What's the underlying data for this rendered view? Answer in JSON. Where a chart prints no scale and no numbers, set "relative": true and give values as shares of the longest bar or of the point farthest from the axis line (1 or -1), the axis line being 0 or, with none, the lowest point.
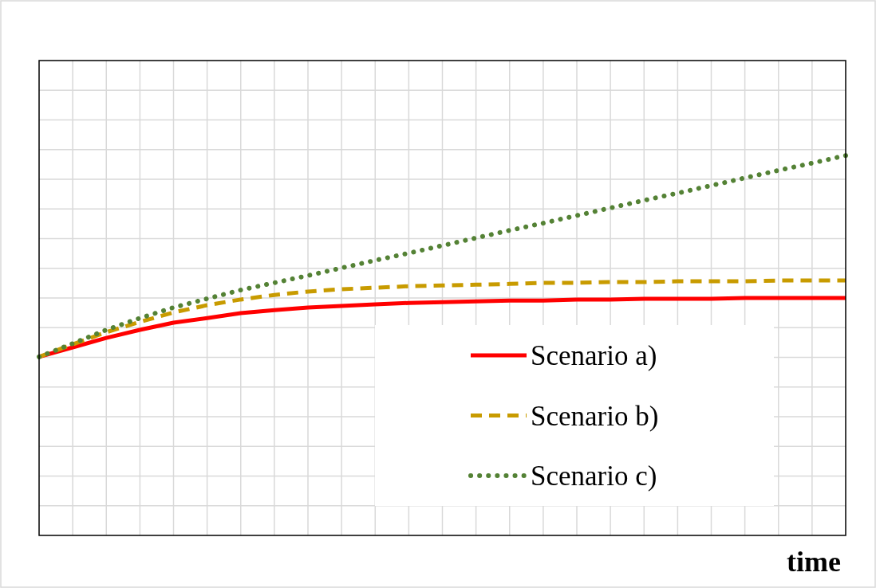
{
  "chart_data": {
    "type": "line",
    "relative": true,
    "xlabel": "time",
    "grid": true,
    "legend": "bottom right",
    "categories": [
      null,
      null,
      null,
      null,
      null,
      null,
      null,
      null,
      null,
      null,
      null,
      null,
      null,
      null,
      null,
      null,
      null,
      null,
      null,
      null,
      null,
      null,
      null,
      null,
      null
    ],
    "series": [
      {
        "name": "Scenario a)",
        "color": "#ff0000",
        "line_style": "solid",
        "values": [
          0.47,
          0.495,
          0.52,
          0.541,
          0.56,
          0.572,
          0.585,
          0.593,
          0.6,
          0.604,
          0.608,
          0.612,
          0.614,
          0.616,
          0.618,
          0.618,
          0.621,
          0.621,
          0.623,
          0.623,
          0.623,
          0.625,
          0.625,
          0.625,
          0.625
        ]
      },
      {
        "name": "Scenario b)",
        "color": "#c89b00",
        "line_style": "dashed",
        "values": [
          0.47,
          0.503,
          0.535,
          0.562,
          0.587,
          0.606,
          0.621,
          0.633,
          0.642,
          0.648,
          0.652,
          0.656,
          0.658,
          0.66,
          0.662,
          0.665,
          0.665,
          0.667,
          0.667,
          0.669,
          0.669,
          0.669,
          0.671,
          0.671,
          0.671
        ]
      },
      {
        "name": "Scenario c)",
        "color": "#548235",
        "line_style": "dotted",
        "values": [
          0.47,
          0.505,
          0.541,
          0.572,
          0.6,
          0.623,
          0.646,
          0.665,
          0.684,
          0.704,
          0.724,
          0.743,
          0.763,
          0.783,
          0.803,
          0.822,
          0.842,
          0.862,
          0.882,
          0.901,
          0.921,
          0.941,
          0.961,
          0.98,
          1.0
        ]
      }
    ]
  }
}
